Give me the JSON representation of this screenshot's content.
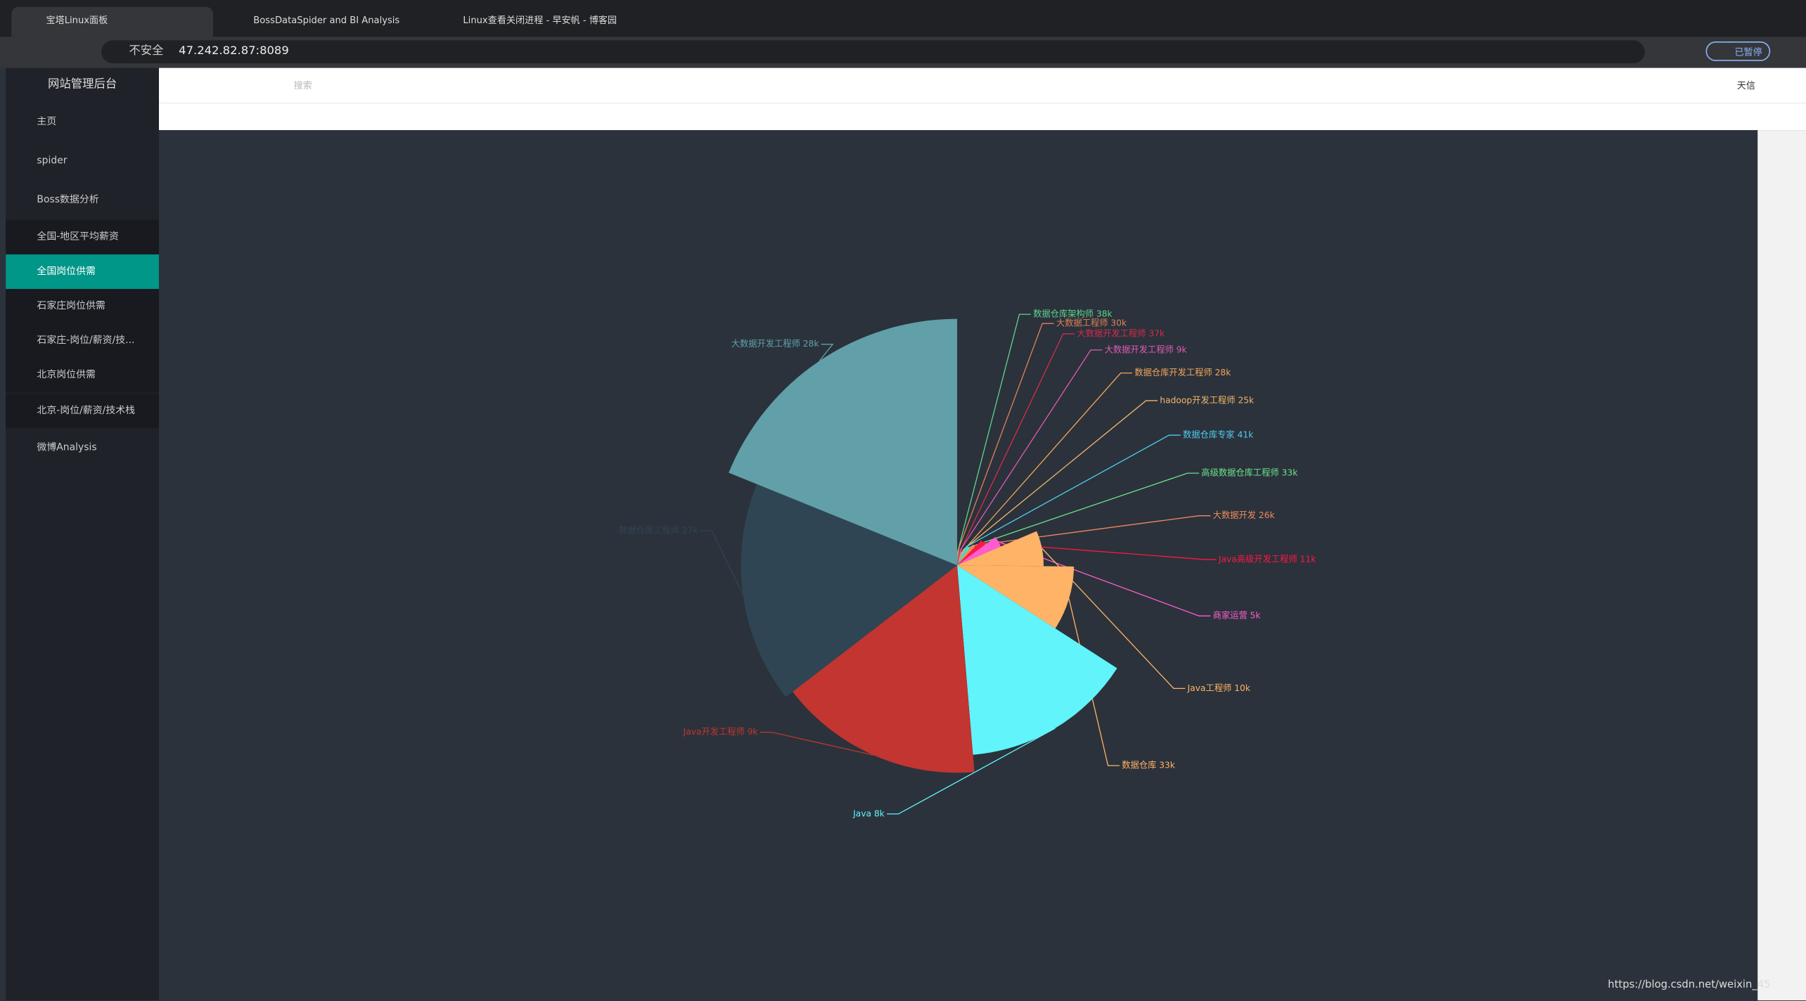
{
  "browser": {
    "tabs": [
      "宝塔Linux面板",
      "BossDataSpider and BI Analysis",
      "Linux查看关闭进程 - 早安帆 - 博客园"
    ],
    "security": "不安全",
    "url": "47.242.82.87:8089",
    "profile": "已暂停"
  },
  "sidebar": {
    "title": "网站管理后台",
    "items": [
      "主页",
      "spider",
      "Boss数据分析",
      "全国-地区平均薪资",
      "全国岗位供需",
      "石家庄岗位供需",
      "石家庄-岗位/薪资/技...",
      "北京岗位供需",
      "北京-岗位/薪资/技术栈",
      "微博Analysis"
    ]
  },
  "header": {
    "search": "搜索",
    "user": "天信"
  },
  "watermark": "https://blog.csdn.net/weixin_45",
  "chart_data": {
    "type": "pie",
    "rose": true,
    "categories": [
      "数据仓库架构师 38k",
      "大数据工程师 30k",
      "大数据开发工程师 37k",
      "大数据开发工程师 9k",
      "数据仓库开发工程师 28k",
      "hadoop开发工程师 25k",
      "数据仓库专家 41k",
      "高级数据仓库工程师 33k",
      "大数据开发 26k",
      "Java高级开发工程师 11k",
      "商家运营 5k",
      "Java工程师 10k",
      "数据仓库 33k",
      "Java 8k",
      "Java开发工程师 9k",
      "数据仓库工程师 27k",
      "大数据开发工程师 28k"
    ],
    "values": [
      3,
      4,
      3,
      4,
      3,
      4,
      5,
      5,
      6,
      8,
      11,
      20,
      27,
      44,
      48,
      50,
      57
    ],
    "colors": [
      "#5fd38d",
      "#e0805b",
      "#d42b4f",
      "#e05ab4",
      "#f4a55a",
      "#f2b66a",
      "#4ecdf0",
      "#6be28a",
      "#f08a5d",
      "#ff1744",
      "#ff5dcf",
      "#ffb366",
      "#ffb366",
      "#61f4fb",
      "#c23531",
      "#2f4554",
      "#61a0a8"
    ]
  }
}
